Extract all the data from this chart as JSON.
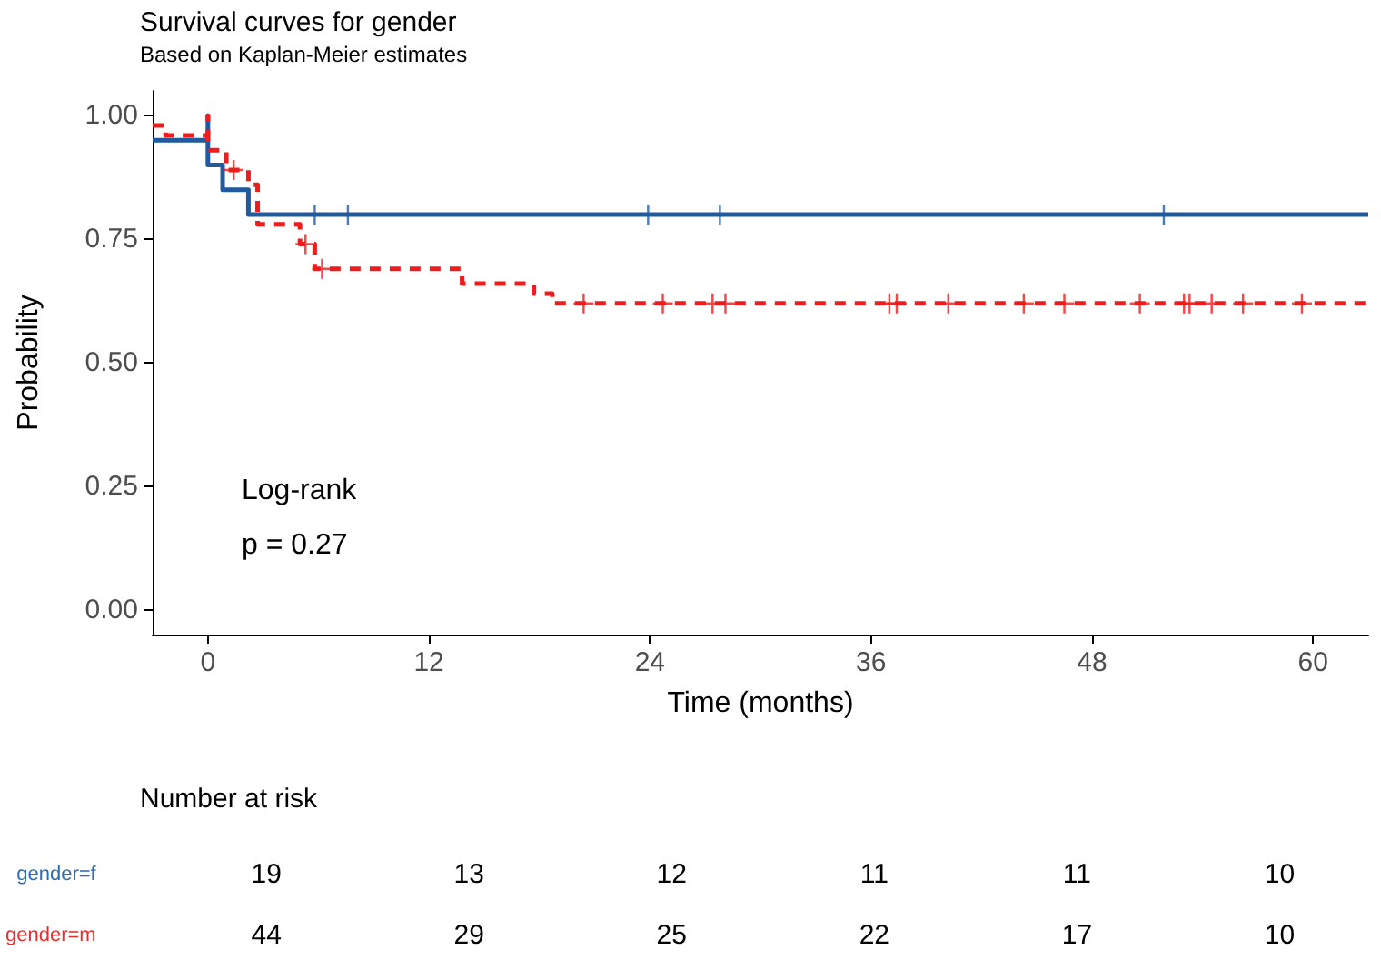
{
  "chart_data": [
    {
      "type": "step",
      "title": "Survival curves for gender",
      "subtitle": "Based on Kaplan-Meier estimates",
      "xlabel": "Time (months)",
      "ylabel": "Probability",
      "annotations": [
        "Log-rank",
        "p = 0.27"
      ],
      "xlim": [
        -3,
        63
      ],
      "xticks": [
        0,
        12,
        24,
        36,
        48,
        60
      ],
      "ylim": [
        -0.05,
        1.05
      ],
      "yticks": [
        {
          "value": 0,
          "label": "0.00"
        },
        {
          "value": 0.25,
          "label": "0.25"
        },
        {
          "value": 0.5,
          "label": "0.50"
        },
        {
          "value": 0.75,
          "label": "0.75"
        },
        {
          "value": 1,
          "label": "1.00"
        }
      ],
      "grid": false,
      "series": [
        {
          "type": "step",
          "color": "#1f5b9e",
          "line_style": "solid",
          "x": [
            -3,
            0,
            0,
            0.8,
            2.2,
            63
          ],
          "values": [
            0.95,
            1.0,
            0.9,
            0.85,
            0.8,
            0.8
          ]
        },
        {
          "type": "step",
          "color": "#ee1c1c",
          "line_style": "dashed",
          "x": [
            -3,
            -2.3,
            0,
            0,
            1.0,
            2.2,
            2.7,
            5.0,
            5.8,
            13.8,
            17.7,
            18.7,
            63
          ],
          "values": [
            0.98,
            0.96,
            1.0,
            0.93,
            0.89,
            0.86,
            0.78,
            0.74,
            0.69,
            0.66,
            0.64,
            0.62,
            0.62
          ]
        },
        {
          "type": "scatter",
          "marker": "cross",
          "color": "#1f5b9e",
          "x": [
            5.8,
            7.6,
            23.9,
            27.8,
            51.9
          ],
          "values": [
            0.8,
            0.8,
            0.8,
            0.8,
            0.8
          ]
        },
        {
          "type": "scatter",
          "marker": "cross",
          "color": "#ee1c1c",
          "x": [
            1.4,
            5.3,
            6.2,
            20.4,
            24.7,
            27.4,
            28.1,
            37.0,
            37.4,
            40.2,
            44.3,
            46.5,
            50.6,
            53.0,
            53.3,
            54.5,
            56.2,
            59.4
          ],
          "values": [
            0.89,
            0.74,
            0.69,
            0.62,
            0.62,
            0.62,
            0.62,
            0.62,
            0.62,
            0.62,
            0.62,
            0.62,
            0.62,
            0.62,
            0.62,
            0.62,
            0.62,
            0.62
          ]
        }
      ]
    },
    {
      "type": "heatmap",
      "title": "Number at risk",
      "data_labels": true,
      "categories": [
        null,
        null,
        null,
        null,
        null,
        null
      ],
      "y_categories": [
        "gender=f",
        "gender=m"
      ],
      "colors": [
        "#2e6bb0",
        "#e53030"
      ],
      "cells": [
        [
          19,
          13,
          12,
          11,
          11,
          10
        ],
        [
          44,
          29,
          25,
          22,
          17,
          10
        ]
      ]
    }
  ]
}
